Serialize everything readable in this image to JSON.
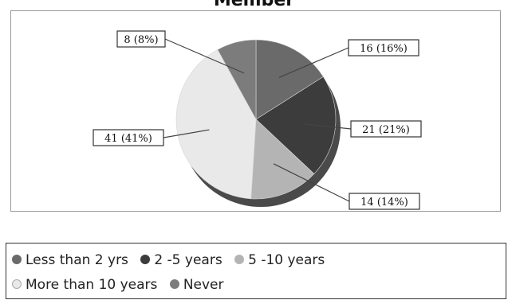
{
  "chart_data": {
    "type": "pie",
    "title": "Member",
    "slices": [
      {
        "name": "Less than 2 yrs",
        "value": 16,
        "percent": 16,
        "label": "16 (16%)",
        "color": "#6a6a6a"
      },
      {
        "name": "2 -5 years",
        "value": 21,
        "percent": 21,
        "label": "21 (21%)",
        "color": "#3c3c3c"
      },
      {
        "name": "5 -10 years",
        "value": 14,
        "percent": 14,
        "label": "14 (14%)",
        "color": "#b4b4b4"
      },
      {
        "name": "More than 10 years",
        "value": 41,
        "percent": 41,
        "label": "41 (41%)",
        "color": "#e9e9e9"
      },
      {
        "name": "Never",
        "value": 8,
        "percent": 8,
        "label": "8 (8%)",
        "color": "#7c7c7c"
      }
    ],
    "legend_position": "bottom"
  }
}
